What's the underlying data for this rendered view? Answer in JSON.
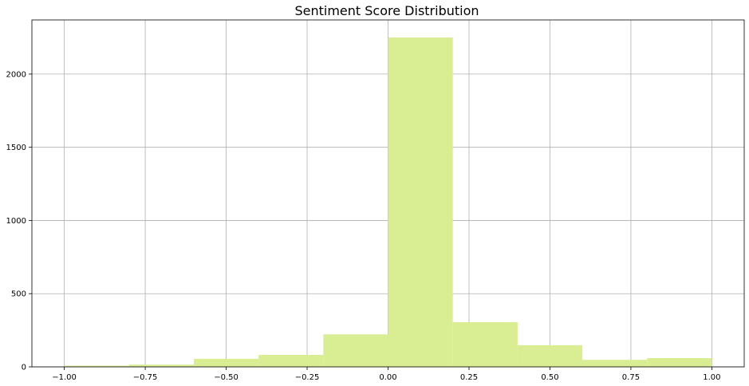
{
  "chart_data": {
    "type": "bar",
    "title": "Sentiment Score Distribution",
    "xlabel": "",
    "ylabel": "",
    "bins": [
      {
        "start": -1.0,
        "end": -0.8,
        "count": 8
      },
      {
        "start": -0.8,
        "end": -0.6,
        "count": 15
      },
      {
        "start": -0.6,
        "end": -0.4,
        "count": 55
      },
      {
        "start": -0.4,
        "end": -0.2,
        "count": 82
      },
      {
        "start": -0.2,
        "end": 0.0,
        "count": 222
      },
      {
        "start": 0.0,
        "end": 0.2,
        "count": 2250
      },
      {
        "start": 0.2,
        "end": 0.4,
        "count": 305
      },
      {
        "start": 0.4,
        "end": 0.6,
        "count": 148
      },
      {
        "start": 0.6,
        "end": 0.8,
        "count": 48
      },
      {
        "start": 0.8,
        "end": 1.0,
        "count": 60
      }
    ],
    "xlim": [
      -1.1,
      1.1
    ],
    "ylim": [
      0,
      2370
    ],
    "x_ticks": [
      -1.0,
      -0.75,
      -0.5,
      -0.25,
      0.0,
      0.25,
      0.5,
      0.75,
      1.0
    ],
    "x_tick_labels": [
      "−1.00",
      "−0.75",
      "−0.50",
      "−0.25",
      "0.00",
      "0.25",
      "0.50",
      "0.75",
      "1.00"
    ],
    "y_ticks": [
      0,
      500,
      1000,
      1500,
      2000
    ],
    "y_tick_labels": [
      "0",
      "500",
      "1000",
      "1500",
      "2000"
    ],
    "grid": true,
    "bar_color": "#d9ed92"
  }
}
